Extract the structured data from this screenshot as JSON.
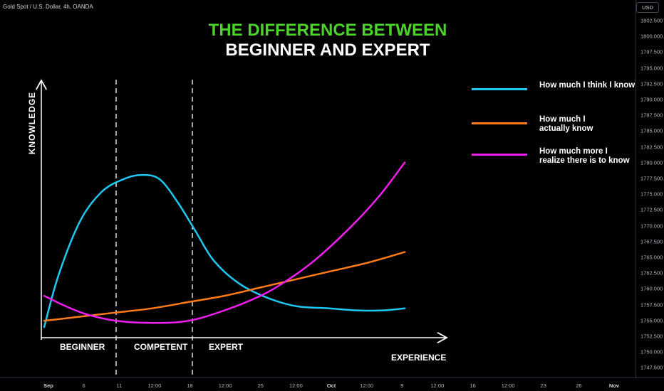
{
  "header": {
    "symbol": "Gold Spot / U.S. Dollar, 4h, OANDA",
    "currency": "USD"
  },
  "price_axis": [
    "1802.500",
    "1800.000",
    "1797.500",
    "1795.000",
    "1792.500",
    "1790.000",
    "1787.500",
    "1785.000",
    "1782.500",
    "1780.000",
    "1777.500",
    "1775.000",
    "1772.500",
    "1770.000",
    "1767.500",
    "1765.000",
    "1762.500",
    "1760.000",
    "1757.500",
    "1755.000",
    "1752.500",
    "1750.000",
    "1747.500"
  ],
  "time_axis": [
    {
      "label": "Sep",
      "bold": true
    },
    {
      "label": "6",
      "bold": false
    },
    {
      "label": "11",
      "bold": false
    },
    {
      "label": "12:00",
      "bold": false
    },
    {
      "label": "18",
      "bold": false
    },
    {
      "label": "12:00",
      "bold": false
    },
    {
      "label": "25",
      "bold": false
    },
    {
      "label": "12:00",
      "bold": false
    },
    {
      "label": "Oct",
      "bold": true
    },
    {
      "label": "12:00",
      "bold": false
    },
    {
      "label": "9",
      "bold": false
    },
    {
      "label": "12:00",
      "bold": false
    },
    {
      "label": "16",
      "bold": false
    },
    {
      "label": "12:00",
      "bold": false
    },
    {
      "label": "23",
      "bold": false
    },
    {
      "label": "26",
      "bold": false
    },
    {
      "label": "Nov",
      "bold": true
    }
  ],
  "title": {
    "line1": "THE DIFFERENCE BETWEEN",
    "line2": "BEGINNER AND EXPERT"
  },
  "chart_data": {
    "type": "line",
    "xlabel": "EXPERIENCE",
    "ylabel": "KNOWLEDGE",
    "stages": [
      "BEGINNER",
      "COMPETENT",
      "EXPERT"
    ],
    "legend_position": "right",
    "series": [
      {
        "name": "How much I think I know",
        "color": "#1ec8f0",
        "points": [
          [
            0,
            1
          ],
          [
            4,
            26
          ],
          [
            10,
            52
          ],
          [
            16,
            66
          ],
          [
            22,
            72
          ],
          [
            27,
            74
          ],
          [
            32,
            72
          ],
          [
            37,
            61
          ],
          [
            42,
            47
          ],
          [
            47,
            33
          ],
          [
            54,
            22
          ],
          [
            62,
            15
          ],
          [
            70,
            11
          ],
          [
            79,
            10
          ],
          [
            87,
            9
          ],
          [
            94,
            9
          ],
          [
            100,
            10
          ]
        ]
      },
      {
        "name": "How much I actually know",
        "color": "#ff7a1a",
        "points": [
          [
            0,
            4
          ],
          [
            10,
            6
          ],
          [
            20,
            8
          ],
          [
            30,
            10
          ],
          [
            40,
            13
          ],
          [
            50,
            16
          ],
          [
            60,
            20
          ],
          [
            70,
            24
          ],
          [
            80,
            28
          ],
          [
            90,
            32
          ],
          [
            100,
            37
          ]
        ]
      },
      {
        "name": "How much more I realize there is to know",
        "color": "#f01ef0",
        "points": [
          [
            0,
            16
          ],
          [
            6,
            11
          ],
          [
            12,
            7
          ],
          [
            20,
            4
          ],
          [
            30,
            3
          ],
          [
            40,
            4
          ],
          [
            50,
            9
          ],
          [
            60,
            16
          ],
          [
            67,
            23
          ],
          [
            75,
            33
          ],
          [
            85,
            49
          ],
          [
            93,
            64
          ],
          [
            100,
            80
          ]
        ]
      }
    ]
  }
}
